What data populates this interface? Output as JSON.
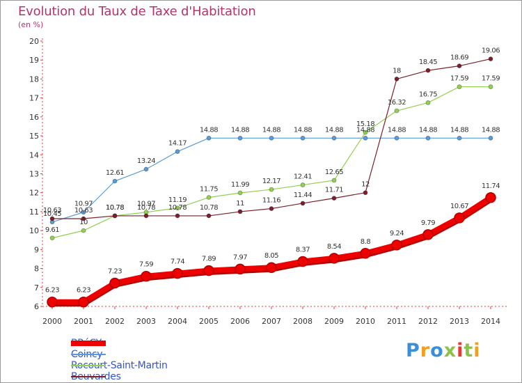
{
  "header": {
    "title": "Evolution du Taux de Taxe d'Habitation",
    "unit": "(en %)"
  },
  "logo": {
    "text": "Proxiti",
    "colors": [
      "#3a8fd6",
      "#f0a020",
      "#3a8fd6",
      "#8bc34a",
      "#e53935",
      "#8bc34a",
      "#f0a020"
    ]
  },
  "chart_data": {
    "type": "line",
    "title": "Evolution du Taux de Taxe d'Habitation",
    "subtitle": "(en %)",
    "xlabel": "",
    "ylabel": "",
    "x": [
      2000,
      2001,
      2002,
      2003,
      2004,
      2005,
      2006,
      2007,
      2008,
      2009,
      2010,
      2011,
      2012,
      2013,
      2014
    ],
    "ylim": [
      6,
      20
    ],
    "yticks": [
      6,
      7,
      8,
      9,
      10,
      11,
      12,
      13,
      14,
      15,
      16,
      17,
      18,
      19,
      20
    ],
    "grid": "none",
    "legend_position": "bottom-left",
    "series": [
      {
        "name": "BRéCY",
        "color": "#ee0000",
        "values": [
          6.23,
          6.23,
          7.23,
          7.59,
          7.74,
          7.89,
          7.97,
          8.05,
          8.37,
          8.54,
          8.8,
          9.24,
          9.79,
          10.67,
          11.74
        ],
        "labels": [
          "6.23",
          "6.23",
          "7.23",
          "7.59",
          "7.74",
          "7.89",
          "7.97",
          "8.05",
          "8.37",
          "8.54",
          "8.8",
          "9.24",
          "9.79",
          "10.67",
          "11.74"
        ]
      },
      {
        "name": "Coincy",
        "color": "#5a9bd5",
        "values": [
          10.45,
          10.97,
          12.61,
          13.24,
          14.17,
          14.88,
          14.88,
          14.88,
          14.88,
          14.88,
          14.88,
          14.88,
          14.88,
          14.88,
          14.88
        ],
        "labels": [
          "10.45",
          "10.97",
          "12.61",
          "13.24",
          "14.17",
          "14.88",
          "14.88",
          "14.88",
          "14.88",
          "14.88",
          "14.88",
          "14.88",
          "14.88",
          "14.88",
          "14.88"
        ]
      },
      {
        "name": "Rocourt-Saint-Martin",
        "color": "#92d050",
        "values": [
          9.61,
          10,
          10.78,
          10.97,
          11.19,
          11.75,
          11.99,
          12.17,
          12.41,
          12.65,
          15.18,
          16.32,
          16.75,
          17.59,
          17.59
        ],
        "labels": [
          "9.61",
          "10",
          "10.78",
          "10.97",
          "11.19",
          "11.75",
          "11.99",
          "12.17",
          "12.41",
          "12.65",
          "15.18",
          "16.32",
          "16.75",
          "17.59",
          "17.59"
        ]
      },
      {
        "name": "Beuvardes",
        "color": "#7a1f2b",
        "values": [
          10.63,
          10.63,
          10.78,
          10.78,
          10.78,
          10.78,
          11,
          11.16,
          11.44,
          11.71,
          12,
          18,
          18.45,
          18.69,
          19.06
        ],
        "labels": [
          "10.63",
          "10.63",
          "10.78",
          "10.78",
          "10.78",
          "10.78",
          "11",
          "11.16",
          "11.44",
          "11.71",
          "12",
          "18",
          "18.45",
          "18.69",
          "19.06"
        ]
      }
    ]
  }
}
